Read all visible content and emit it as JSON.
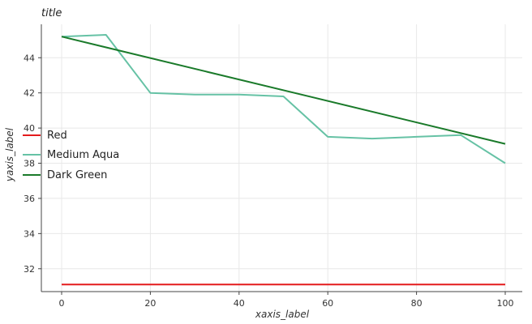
{
  "chart_data": {
    "type": "line",
    "title": "title",
    "xlabel": "xaxis_label",
    "ylabel": "yaxis_label",
    "xlim": [
      0,
      100
    ],
    "ylim": [
      30.7,
      45.9
    ],
    "x_ticks": [
      0,
      20,
      40,
      60,
      80,
      100
    ],
    "y_ticks": [
      32,
      34,
      36,
      38,
      40,
      42,
      44
    ],
    "grid": true,
    "legend_position": "left",
    "series": [
      {
        "name": "Red",
        "color": "#e41a1c",
        "x": [
          0,
          100
        ],
        "y": [
          31.1,
          31.1
        ]
      },
      {
        "name": "Medium Aqua",
        "color": "#66c2a5",
        "x": [
          0,
          10,
          20,
          30,
          40,
          50,
          60,
          70,
          80,
          90,
          100
        ],
        "y": [
          45.2,
          45.3,
          42.0,
          41.9,
          41.9,
          41.8,
          39.5,
          39.4,
          39.5,
          39.6,
          38.0
        ]
      },
      {
        "name": "Dark Green",
        "color": "#1a7a2a",
        "x": [
          0,
          100
        ],
        "y": [
          45.2,
          39.1
        ]
      }
    ]
  }
}
